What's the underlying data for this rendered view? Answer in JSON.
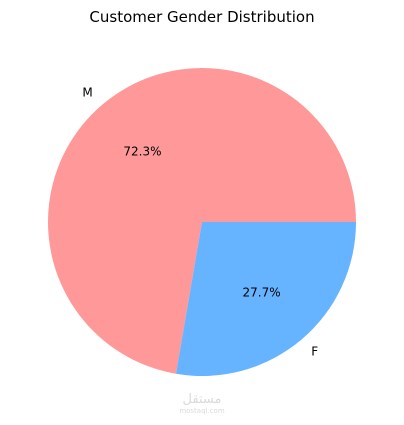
{
  "chart_data": {
    "type": "pie",
    "title": "Customer Gender Distribution",
    "slices": [
      {
        "label": "M",
        "value": 72.3,
        "pct_label": "72.3%",
        "color": "#ff9999"
      },
      {
        "label": "F",
        "value": 27.7,
        "pct_label": "27.7%",
        "color": "#66b3ff"
      }
    ],
    "start_angle_deg": 0,
    "direction": "counterclockwise"
  },
  "watermark": {
    "text_primary": "مستقل",
    "text_secondary": "mostaql.com"
  }
}
